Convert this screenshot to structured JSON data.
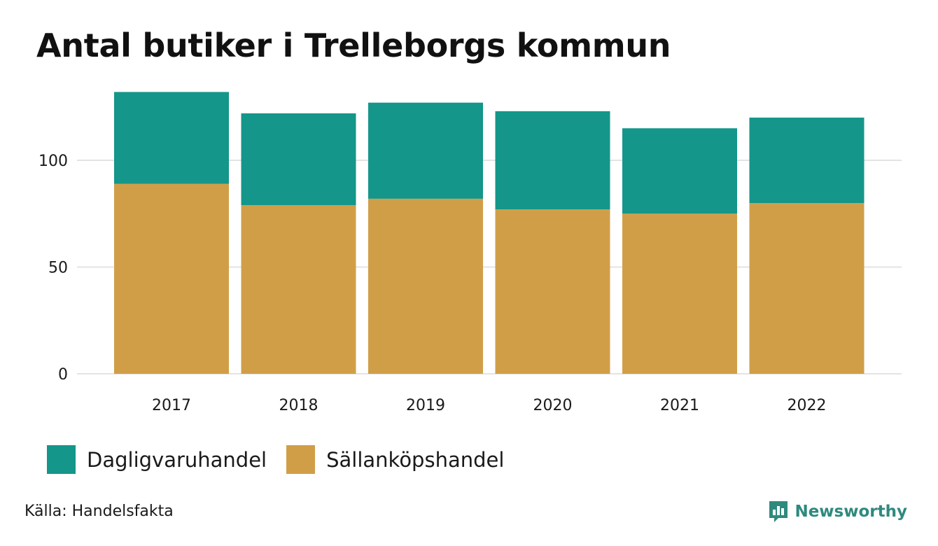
{
  "title": "Antal butiker i Trelleborgs kommun",
  "source": "Källa: Handelsfakta",
  "brand": {
    "name": "Newsworthy",
    "color": "#2e8a7e"
  },
  "chart_data": {
    "type": "bar",
    "stacked": true,
    "title": "Antal butiker i Trelleborgs kommun",
    "xlabel": "",
    "ylabel": "",
    "categories": [
      "2017",
      "2018",
      "2019",
      "2020",
      "2021",
      "2022"
    ],
    "series": [
      {
        "name": "Sällanköpshandel",
        "color": "#d19e48",
        "values": [
          89,
          79,
          82,
          77,
          75,
          80
        ]
      },
      {
        "name": "Dagligvaruhandel",
        "color": "#14968a",
        "values": [
          43,
          43,
          45,
          46,
          40,
          40
        ]
      }
    ],
    "ylim": [
      0,
      132
    ],
    "yticks": [
      "0",
      "50",
      "100"
    ],
    "grid": true,
    "legend_position": "bottom-left"
  },
  "legend": [
    {
      "label": "Dagligvaruhandel",
      "color": "#14968a"
    },
    {
      "label": "Sällanköpshandel",
      "color": "#d19e48"
    }
  ]
}
